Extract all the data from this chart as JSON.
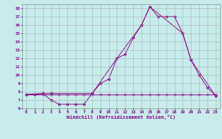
{
  "xlabel": "Windchill (Refroidissement éolien,°C)",
  "background_color": "#c8ecec",
  "grid_color": "#aaaaaa",
  "line_color": "#880088",
  "xlim": [
    -0.5,
    23.5
  ],
  "ylim": [
    6,
    18.5
  ],
  "xticks": [
    0,
    1,
    2,
    3,
    4,
    5,
    6,
    7,
    8,
    9,
    10,
    11,
    12,
    13,
    14,
    15,
    16,
    17,
    18,
    19,
    20,
    21,
    22,
    23
  ],
  "yticks": [
    6,
    7,
    8,
    9,
    10,
    11,
    12,
    13,
    14,
    15,
    16,
    17,
    18
  ],
  "line1_x": [
    0,
    1,
    2,
    3,
    4,
    5,
    6,
    7,
    8,
    9,
    10,
    11,
    12,
    13,
    14,
    15,
    16,
    17,
    18,
    19,
    20,
    21,
    22,
    23
  ],
  "line1_y": [
    7.7,
    7.7,
    7.8,
    7.0,
    6.5,
    6.5,
    6.5,
    6.5,
    7.8,
    9.0,
    9.5,
    12.0,
    12.5,
    14.5,
    16.0,
    18.2,
    17.0,
    17.0,
    17.0,
    15.0,
    11.8,
    10.0,
    8.5,
    7.5
  ],
  "line2_x": [
    0,
    1,
    2,
    3,
    4,
    5,
    6,
    7,
    8,
    9,
    10,
    11,
    12,
    13,
    14,
    15,
    16,
    17,
    18,
    19,
    20,
    21,
    22,
    23
  ],
  "line2_y": [
    7.7,
    7.7,
    7.7,
    7.7,
    7.7,
    7.7,
    7.7,
    7.7,
    7.7,
    7.7,
    7.7,
    7.7,
    7.7,
    7.7,
    7.7,
    7.7,
    7.7,
    7.7,
    7.7,
    7.7,
    7.7,
    7.7,
    7.7,
    7.7
  ],
  "line3_x": [
    0,
    3,
    8,
    11,
    14,
    15,
    19,
    20,
    23
  ],
  "line3_y": [
    7.7,
    7.8,
    7.8,
    12.0,
    16.0,
    18.2,
    15.0,
    11.8,
    7.5
  ]
}
